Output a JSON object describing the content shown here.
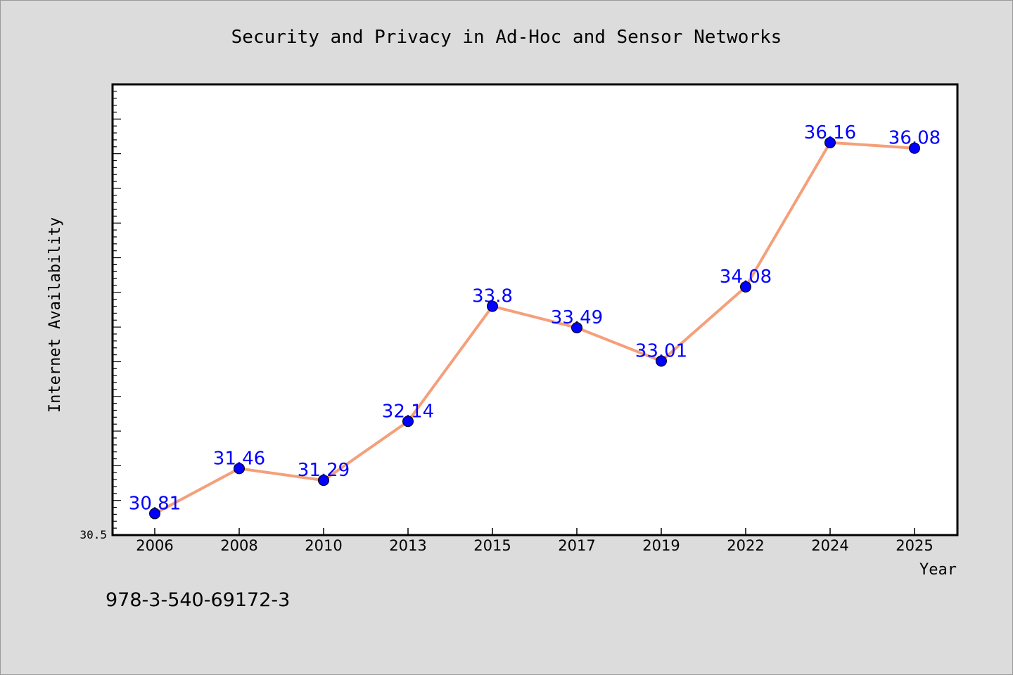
{
  "chart_data": {
    "type": "line",
    "title": "Security and Privacy in Ad-Hoc and Sensor Networks",
    "xlabel": "Year",
    "ylabel": "Internet Availability",
    "categories": [
      "2006",
      "2008",
      "2010",
      "2013",
      "2015",
      "2017",
      "2019",
      "2022",
      "2024",
      "2025"
    ],
    "series": [
      {
        "values": [
          30.81,
          31.46,
          31.29,
          32.14,
          33.8,
          33.49,
          33.01,
          34.08,
          36.16,
          36.08
        ],
        "labels": [
          "30.81",
          "31.46",
          "31.29",
          "32.14",
          "33.8",
          "33.49",
          "33.01",
          "34.08",
          "36.16",
          "36.08"
        ]
      }
    ],
    "ylim": [
      30.5,
      37.0
    ],
    "ytick_label": "30.5",
    "grid": false,
    "legend": "none",
    "colors": {
      "line": "#f4a07a",
      "marker": "#0000ff",
      "data_label": "#0000ff",
      "plot_bg": "#ffffff",
      "figure_bg": "#dcdcdc"
    }
  },
  "footnote": "978-3-540-69172-3"
}
